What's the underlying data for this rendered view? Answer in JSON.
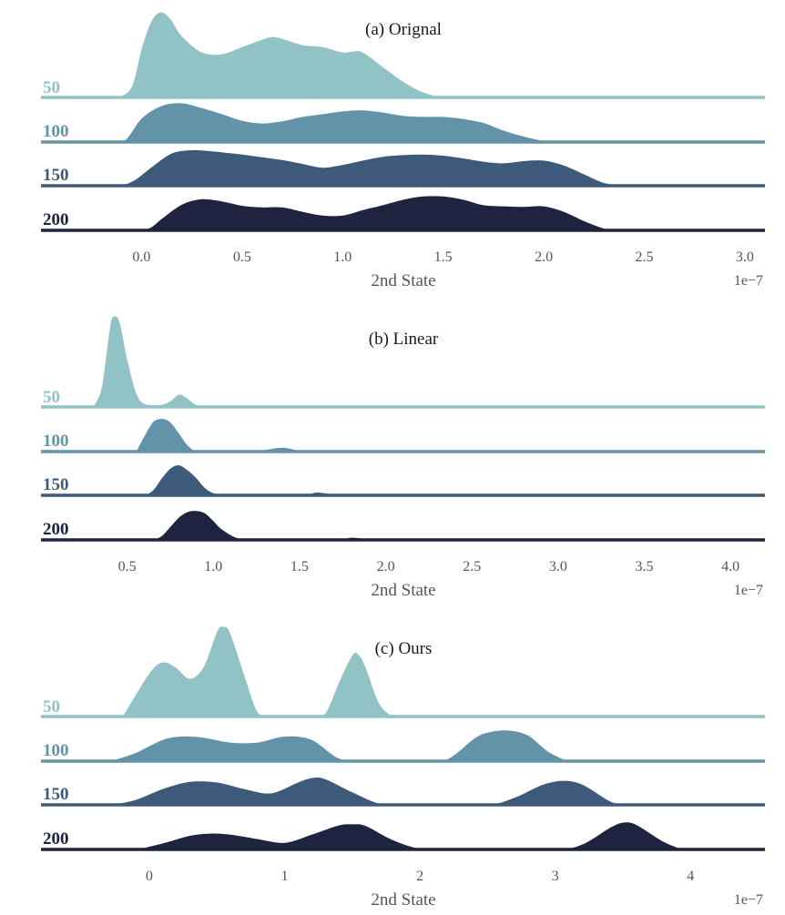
{
  "colors": [
    "#91c3c6",
    "#6393a9",
    "#3e5a7b",
    "#1f2340"
  ],
  "chart_data": [
    {
      "type": "area",
      "subtype": "ridgeline",
      "title": "(a) Orignal",
      "xlabel": "2nd State",
      "offset_text": "1e−7",
      "xlim": [
        -0.5,
        3.1
      ],
      "xticks": [
        0.0,
        0.5,
        1.0,
        1.5,
        2.0,
        2.5,
        3.0
      ],
      "xtick_labels": [
        "0.0",
        "0.5",
        "1.0",
        "1.5",
        "2.0",
        "2.5",
        "3.0"
      ],
      "series": [
        {
          "name": "50",
          "x": [
            -0.12,
            -0.05,
            0.0,
            0.05,
            0.1,
            0.15,
            0.2,
            0.3,
            0.4,
            0.5,
            0.6,
            0.65,
            0.7,
            0.8,
            0.9,
            1.0,
            1.05,
            1.1,
            1.2,
            1.3,
            1.4,
            1.5
          ],
          "y": [
            0.0,
            0.12,
            0.55,
            0.85,
            0.94,
            0.85,
            0.68,
            0.5,
            0.48,
            0.56,
            0.64,
            0.67,
            0.65,
            0.58,
            0.56,
            0.5,
            0.51,
            0.5,
            0.34,
            0.18,
            0.06,
            0.0
          ]
        },
        {
          "name": "100",
          "x": [
            -0.15,
            -0.08,
            0.0,
            0.1,
            0.2,
            0.3,
            0.4,
            0.5,
            0.6,
            0.7,
            0.8,
            0.9,
            1.0,
            1.1,
            1.2,
            1.3,
            1.4,
            1.5,
            1.6,
            1.7,
            1.8,
            1.9,
            2.0,
            2.1
          ],
          "y": [
            0.0,
            0.05,
            0.44,
            0.67,
            0.72,
            0.63,
            0.52,
            0.4,
            0.35,
            0.39,
            0.47,
            0.52,
            0.57,
            0.59,
            0.55,
            0.49,
            0.47,
            0.47,
            0.43,
            0.36,
            0.22,
            0.11,
            0.03,
            0.0
          ]
        },
        {
          "name": "150",
          "x": [
            -0.1,
            -0.03,
            0.05,
            0.15,
            0.25,
            0.35,
            0.5,
            0.6,
            0.7,
            0.8,
            0.9,
            1.0,
            1.1,
            1.2,
            1.3,
            1.4,
            1.5,
            1.6,
            1.7,
            1.8,
            1.9,
            2.0,
            2.1,
            2.2,
            2.3,
            2.4
          ],
          "y": [
            0.0,
            0.12,
            0.35,
            0.6,
            0.66,
            0.64,
            0.58,
            0.53,
            0.48,
            0.41,
            0.34,
            0.39,
            0.47,
            0.54,
            0.57,
            0.58,
            0.56,
            0.51,
            0.45,
            0.42,
            0.46,
            0.47,
            0.38,
            0.22,
            0.06,
            0.0
          ]
        },
        {
          "name": "200",
          "x": [
            0.0,
            0.05,
            0.1,
            0.2,
            0.3,
            0.4,
            0.5,
            0.6,
            0.7,
            0.8,
            0.9,
            1.0,
            1.1,
            1.2,
            1.3,
            1.4,
            1.5,
            1.6,
            1.7,
            1.8,
            1.9,
            2.0,
            2.1,
            2.2,
            2.3,
            2.35
          ],
          "y": [
            0.0,
            0.07,
            0.22,
            0.48,
            0.58,
            0.54,
            0.46,
            0.43,
            0.43,
            0.35,
            0.28,
            0.28,
            0.38,
            0.47,
            0.57,
            0.63,
            0.63,
            0.57,
            0.47,
            0.45,
            0.44,
            0.45,
            0.35,
            0.18,
            0.04,
            0.0
          ]
        }
      ]
    },
    {
      "type": "area",
      "subtype": "ridgeline",
      "title": "(b) Linear",
      "xlabel": "2nd State",
      "offset_text": "1e−7",
      "xlim": [
        0.0,
        4.2
      ],
      "xticks": [
        0.5,
        1.0,
        1.5,
        2.0,
        2.5,
        3.0,
        3.5,
        4.0
      ],
      "xtick_labels": [
        "0.5",
        "1.0",
        "1.5",
        "2.0",
        "2.5",
        "3.0",
        "3.5",
        "4.0"
      ],
      "series": [
        {
          "name": "50",
          "x": [
            0.3,
            0.35,
            0.4,
            0.43,
            0.46,
            0.5,
            0.55,
            0.6,
            0.7,
            0.75,
            0.8,
            0.85,
            0.9,
            1.0,
            1.3,
            1.6
          ],
          "y": [
            0.0,
            0.22,
            0.9,
            1.0,
            0.92,
            0.55,
            0.18,
            0.04,
            0.03,
            0.07,
            0.14,
            0.1,
            0.03,
            0.0,
            0.01,
            0.0
          ]
        },
        {
          "name": "100",
          "x": [
            0.55,
            0.6,
            0.65,
            0.7,
            0.75,
            0.8,
            0.85,
            0.9,
            1.0,
            1.2,
            1.3,
            1.4,
            1.5,
            1.6
          ],
          "y": [
            0.0,
            0.3,
            0.55,
            0.61,
            0.55,
            0.35,
            0.13,
            0.02,
            0.0,
            0.0,
            0.04,
            0.08,
            0.03,
            0.0
          ]
        },
        {
          "name": "150",
          "x": [
            0.6,
            0.65,
            0.7,
            0.75,
            0.8,
            0.85,
            0.9,
            0.95,
            1.0,
            1.1,
            1.2,
            1.5,
            1.6,
            1.7,
            1.8
          ],
          "y": [
            0.0,
            0.1,
            0.32,
            0.5,
            0.56,
            0.47,
            0.33,
            0.15,
            0.05,
            0.0,
            0.0,
            0.0,
            0.06,
            0.02,
            0.0
          ]
        },
        {
          "name": "200",
          "x": [
            0.65,
            0.7,
            0.75,
            0.8,
            0.85,
            0.9,
            0.95,
            1.0,
            1.05,
            1.15,
            1.3,
            1.7,
            1.8,
            1.9,
            2.0
          ],
          "y": [
            0.0,
            0.08,
            0.25,
            0.42,
            0.52,
            0.54,
            0.5,
            0.36,
            0.2,
            0.03,
            0.0,
            0.0,
            0.05,
            0.02,
            0.0
          ]
        }
      ]
    },
    {
      "type": "area",
      "subtype": "ridgeline",
      "title": "(c) Ours",
      "xlabel": "2nd State",
      "offset_text": "1e−7",
      "xlim": [
        -0.8,
        4.55
      ],
      "xticks": [
        0,
        1,
        2,
        3,
        4
      ],
      "xtick_labels": [
        "0",
        "1",
        "2",
        "3",
        "4"
      ],
      "series": [
        {
          "name": "50",
          "x": [
            -0.2,
            0.0,
            0.1,
            0.2,
            0.3,
            0.4,
            0.5,
            0.55,
            0.6,
            0.7,
            0.8,
            0.9,
            1.0,
            1.1,
            1.2,
            1.3,
            1.4,
            1.5,
            1.55,
            1.6,
            1.7,
            1.8
          ],
          "y": [
            0.0,
            0.48,
            0.6,
            0.54,
            0.42,
            0.55,
            0.94,
            0.99,
            0.92,
            0.48,
            0.06,
            0.0,
            0.0,
            0.0,
            0.0,
            0.04,
            0.38,
            0.68,
            0.68,
            0.55,
            0.15,
            0.0
          ]
        },
        {
          "name": "100",
          "x": [
            -0.3,
            -0.1,
            0.1,
            0.25,
            0.4,
            0.6,
            0.8,
            1.0,
            1.2,
            1.4,
            1.6,
            1.8,
            2.0,
            2.2,
            2.4,
            2.5,
            2.65,
            2.8,
            2.95,
            3.1
          ],
          "y": [
            0.0,
            0.16,
            0.4,
            0.46,
            0.44,
            0.35,
            0.35,
            0.46,
            0.4,
            0.06,
            0.0,
            0.0,
            0.0,
            0.04,
            0.42,
            0.53,
            0.57,
            0.48,
            0.18,
            0.0
          ]
        },
        {
          "name": "150",
          "x": [
            -0.3,
            -0.1,
            0.1,
            0.3,
            0.5,
            0.7,
            0.9,
            1.1,
            1.2,
            1.3,
            1.5,
            1.7,
            1.9,
            2.2,
            2.5,
            2.7,
            2.9,
            3.05,
            3.2,
            3.4,
            3.5
          ],
          "y": [
            0.0,
            0.1,
            0.3,
            0.43,
            0.42,
            0.3,
            0.22,
            0.42,
            0.5,
            0.48,
            0.24,
            0.03,
            0.0,
            0.0,
            0.0,
            0.14,
            0.37,
            0.45,
            0.38,
            0.08,
            0.0
          ]
        },
        {
          "name": "200",
          "x": [
            -0.1,
            0.1,
            0.3,
            0.45,
            0.6,
            0.8,
            1.0,
            1.2,
            1.4,
            1.5,
            1.6,
            1.8,
            2.0,
            2.2,
            2.6,
            3.0,
            3.2,
            3.4,
            3.5,
            3.6,
            3.8,
            3.95
          ],
          "y": [
            0.0,
            0.12,
            0.26,
            0.3,
            0.28,
            0.2,
            0.13,
            0.28,
            0.45,
            0.47,
            0.44,
            0.18,
            0.02,
            0.0,
            0.0,
            0.0,
            0.1,
            0.4,
            0.5,
            0.46,
            0.15,
            0.0
          ]
        }
      ]
    }
  ]
}
